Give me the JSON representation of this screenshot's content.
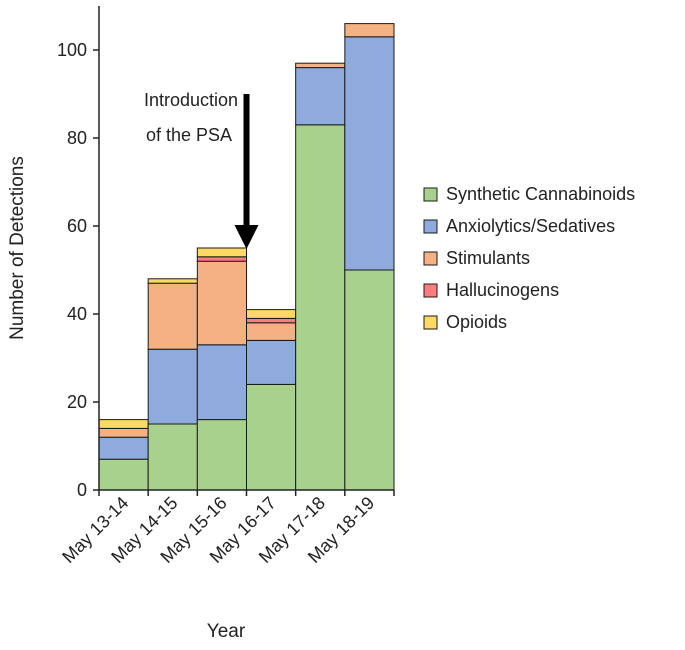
{
  "chart_data": {
    "type": "bar",
    "stacked": true,
    "title": "",
    "xlabel": "Year",
    "ylabel": "Number of Detections",
    "ylim": [
      0,
      110
    ],
    "yticks": [
      0,
      20,
      40,
      60,
      80,
      100
    ],
    "categories": [
      "May 13-14",
      "May 14-15",
      "May 15-16",
      "May 16-17",
      "May 17-18",
      "May 18-19"
    ],
    "series": [
      {
        "name": "Synthetic Cannabinoids",
        "color": "#a9d18e",
        "values": [
          7,
          15,
          16,
          24,
          83,
          50
        ]
      },
      {
        "name": "Anxiolytics/Sedatives",
        "color": "#8faadc",
        "values": [
          5,
          17,
          17,
          10,
          13,
          53
        ]
      },
      {
        "name": "Stimulants",
        "color": "#f4b183",
        "values": [
          2,
          15,
          19,
          4,
          1,
          3
        ]
      },
      {
        "name": "Hallucinogens",
        "color": "#ff7c80",
        "values": [
          0,
          0,
          1,
          1,
          0,
          0
        ]
      },
      {
        "name": "Opioids",
        "color": "#ffd966",
        "values": [
          2,
          1,
          2,
          2,
          0,
          0
        ]
      }
    ],
    "grid": false,
    "legend_position": "right",
    "annotation": {
      "lines": [
        "Introduction",
        "of the PSA"
      ],
      "points_to": "May 15-16"
    }
  }
}
